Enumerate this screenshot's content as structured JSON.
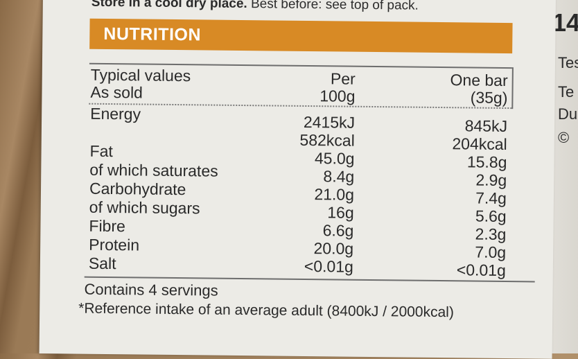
{
  "top_text": {
    "bold": "Store in a cool dry place.",
    "rest": " Best before: see top of pack."
  },
  "header": "NUTRITION",
  "columns": {
    "label_line1": "Typical values",
    "label_line2": "As sold",
    "per100_line1": "Per",
    "per100_line2": "100g",
    "bar_line1": "One bar",
    "bar_line2": "(35g)"
  },
  "rows": [
    {
      "label": "Energy",
      "per100": "2415kJ",
      "bar": "845kJ"
    },
    {
      "label": "",
      "per100": "582kcal",
      "bar": "204kcal"
    },
    {
      "label": "Fat",
      "per100": "45.0g",
      "bar": "15.8g"
    },
    {
      "label": "of which saturates",
      "per100": "8.4g",
      "bar": "2.9g"
    },
    {
      "label": "Carbohydrate",
      "per100": "21.0g",
      "bar": "7.4g"
    },
    {
      "label": "of which sugars",
      "per100": "16g",
      "bar": "5.6g"
    },
    {
      "label": "Fibre",
      "per100": "6.6g",
      "bar": "2.3g"
    },
    {
      "label": "Protein",
      "per100": "20.0g",
      "bar": "7.0g"
    },
    {
      "label": "Salt",
      "per100": "<0.01g",
      "bar": "<0.01g"
    }
  ],
  "servings": "Contains 4 servings",
  "reference": "*Reference intake of an average adult (8400kJ / 2000kcal)",
  "side_text": {
    "big": "14",
    "l1": "Tes",
    "l2": "Te",
    "l3": "Du",
    "l4": "©"
  },
  "colors": {
    "header": "#d88a25",
    "card": "#ecebe6"
  }
}
